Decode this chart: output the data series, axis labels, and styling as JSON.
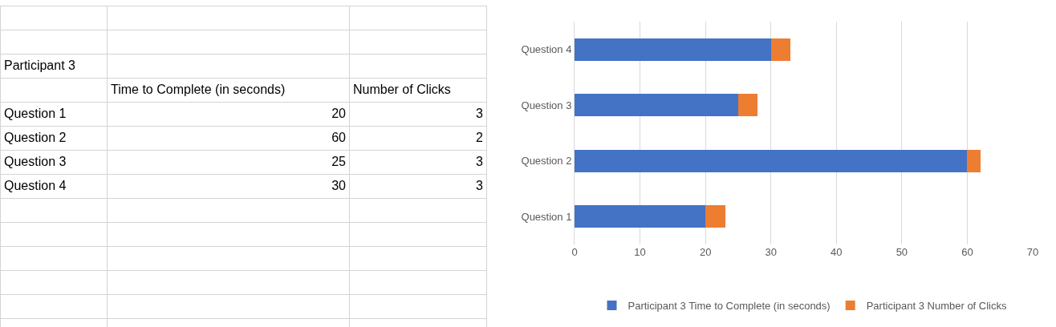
{
  "chart_data": [
    {
      "type": "other",
      "title": "Participant 3",
      "data_labels": true,
      "categories": [
        "Question 1",
        "Question 2",
        "Question 3",
        "Question 4"
      ],
      "series": [
        {
          "name": "Time to Complete (in seconds)",
          "values": [
            20,
            60,
            25,
            30
          ]
        },
        {
          "name": "Number of Clicks",
          "values": [
            3,
            2,
            3,
            3
          ]
        }
      ]
    },
    {
      "type": "bar",
      "orientation": "horizontal",
      "stacked": true,
      "categories": [
        "Question 4",
        "Question 3",
        "Question 2",
        "Question 1"
      ],
      "series": [
        {
          "name": "Participant 3 Time to Complete (in seconds)",
          "color": "#4472c4",
          "values": [
            30,
            25,
            60,
            20
          ]
        },
        {
          "name": "Participant 3 Number of Clicks",
          "color": "#ed7d31",
          "values": [
            3,
            3,
            2,
            3
          ]
        }
      ],
      "xlim": [
        0,
        70
      ],
      "xticks": [
        0,
        10,
        20,
        30,
        40,
        50,
        60,
        70
      ],
      "grid": "x",
      "legend": "bottom"
    }
  ]
}
